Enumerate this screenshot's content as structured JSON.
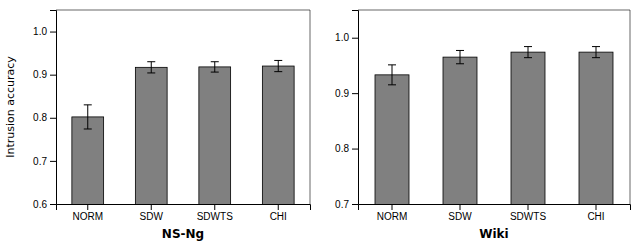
{
  "chart_data": [
    {
      "type": "bar",
      "categories": [
        "NORM",
        "SDW",
        "SDWTS",
        "CHI"
      ],
      "values": [
        0.802,
        0.917,
        0.918,
        0.92
      ],
      "errors": [
        0.028,
        0.013,
        0.012,
        0.013
      ],
      "xlabel": "NS-Ng",
      "ylabel": "Intrusion accuracy",
      "ylim": [
        0.6,
        1.05
      ],
      "yticks": [
        0.6,
        0.7,
        0.8,
        0.9,
        {
          "value": 1.0,
          "label": "1.0"
        }
      ],
      "color": "#808080",
      "grid": false
    },
    {
      "type": "bar",
      "categories": [
        "NORM",
        "SDW",
        "SDWTS",
        "CHI"
      ],
      "values": [
        0.933,
        0.965,
        0.974,
        0.974
      ],
      "errors": [
        0.018,
        0.012,
        0.01,
        0.01
      ],
      "xlabel": "Wiki",
      "ylim": [
        0.7,
        1.05
      ],
      "yticks": [
        0.7,
        0.8,
        0.9,
        {
          "value": 1.0,
          "label": "1.0"
        }
      ],
      "color": "#808080",
      "grid": false
    }
  ]
}
